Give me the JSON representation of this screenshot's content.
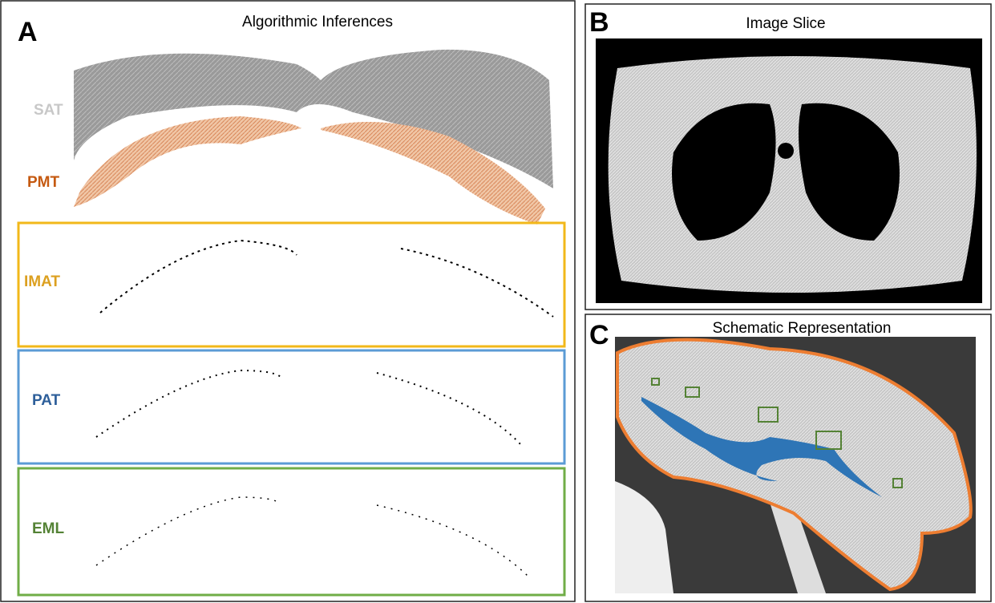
{
  "panels": [
    {
      "letter": "A",
      "title": "Algorithmic Inferences",
      "labels": [
        "SAT",
        "PMT",
        "IMAT",
        "PAT",
        "EML"
      ]
    },
    {
      "letter": "B",
      "title": "Image Slice"
    },
    {
      "letter": "C",
      "title": "Schematic Representation"
    }
  ]
}
